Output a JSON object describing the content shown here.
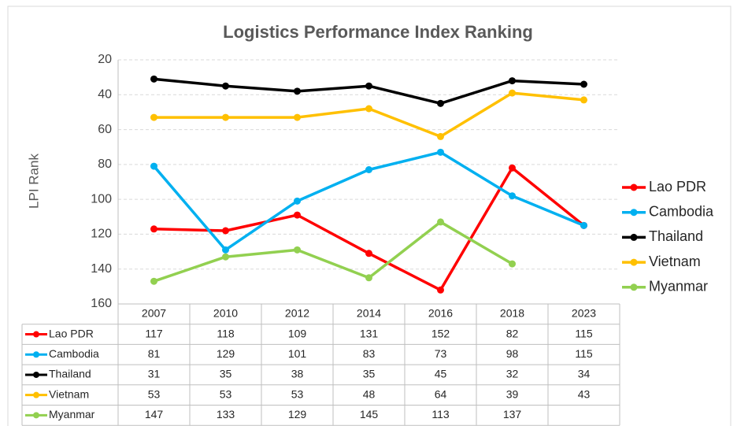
{
  "chart_data": {
    "type": "line",
    "title": "Logistics Performance Index Ranking",
    "y_label": "LPI Rank",
    "categories": [
      "2007",
      "2010",
      "2012",
      "2014",
      "2016",
      "2018",
      "2023"
    ],
    "series": [
      {
        "name": "Lao PDR",
        "color": "#ff0000",
        "values": [
          117,
          118,
          109,
          131,
          152,
          82,
          115
        ]
      },
      {
        "name": "Cambodia",
        "color": "#00b0f0",
        "values": [
          81,
          129,
          101,
          83,
          73,
          98,
          115
        ]
      },
      {
        "name": "Thailand",
        "color": "#000000",
        "values": [
          31,
          35,
          38,
          35,
          45,
          32,
          34
        ]
      },
      {
        "name": "Vietnam",
        "color": "#ffc000",
        "values": [
          53,
          53,
          53,
          48,
          64,
          39,
          43
        ]
      },
      {
        "name": "Myanmar",
        "color": "#92d050",
        "values": [
          147,
          133,
          129,
          145,
          113,
          137,
          null
        ]
      }
    ],
    "ylim": [
      20,
      160
    ],
    "y_inverted": true,
    "yticks": [
      20,
      40,
      60,
      80,
      100,
      120,
      140,
      160
    ],
    "grid": true,
    "legend": "right",
    "data_table": true
  }
}
